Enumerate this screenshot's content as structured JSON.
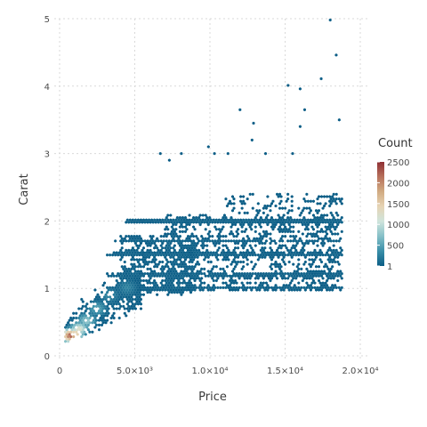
{
  "chart_data": {
    "type": "heatmap",
    "subtype": "hexbin",
    "title": "",
    "xlabel": "Price",
    "ylabel": "Carat",
    "xlim": [
      0,
      20000
    ],
    "ylim": [
      0,
      5
    ],
    "grid": true,
    "x_ticks": [
      {
        "value": 0,
        "label": "0"
      },
      {
        "value": 5000,
        "label": "5.0×10³"
      },
      {
        "value": 10000,
        "label": "1.0×10⁴"
      },
      {
        "value": 15000,
        "label": "1.5×10⁴"
      },
      {
        "value": 20000,
        "label": "2.0×10⁴"
      }
    ],
    "y_ticks": [
      {
        "value": 0,
        "label": "0"
      },
      {
        "value": 1,
        "label": "1"
      },
      {
        "value": 2,
        "label": "2"
      },
      {
        "value": 3,
        "label": "3"
      },
      {
        "value": 4,
        "label": "4"
      },
      {
        "value": 5,
        "label": "5"
      }
    ],
    "legend": {
      "title": "Count",
      "placement": "right",
      "range": [
        1,
        2500
      ],
      "ticks": [
        {
          "value": 2500,
          "label": "2500"
        },
        {
          "value": 2000,
          "label": "2000"
        },
        {
          "value": 1500,
          "label": "1500"
        },
        {
          "value": 1000,
          "label": "1000"
        },
        {
          "value": 500,
          "label": "500"
        },
        {
          "value": 1,
          "label": "1"
        }
      ],
      "colors": [
        "#0b5d86",
        "#3a8fa8",
        "#86c0c8",
        "#cfe4dc",
        "#e6d4b4",
        "#d1ab82",
        "#b7715c",
        "#8f2f34"
      ]
    },
    "hot_spots": [
      {
        "price": 700,
        "carat": 0.3,
        "count": 2500
      },
      {
        "price": 1000,
        "carat": 0.32,
        "count": 1900
      },
      {
        "price": 1300,
        "carat": 0.4,
        "count": 1400
      },
      {
        "price": 1800,
        "carat": 0.52,
        "count": 900
      },
      {
        "price": 2500,
        "carat": 0.7,
        "count": 600
      },
      {
        "price": 3300,
        "carat": 0.9,
        "count": 350
      },
      {
        "price": 4500,
        "carat": 1.01,
        "count": 300
      }
    ],
    "outliers": [
      {
        "price": 18000,
        "carat": 4.98
      },
      {
        "price": 18400,
        "carat": 4.46
      },
      {
        "price": 15200,
        "carat": 4.01
      },
      {
        "price": 16000,
        "carat": 3.96
      },
      {
        "price": 17400,
        "carat": 4.11
      },
      {
        "price": 16300,
        "carat": 3.65
      },
      {
        "price": 12000,
        "carat": 3.65
      },
      {
        "price": 12900,
        "carat": 3.45
      },
      {
        "price": 16000,
        "carat": 3.4
      },
      {
        "price": 18600,
        "carat": 3.5
      },
      {
        "price": 12800,
        "carat": 3.2
      },
      {
        "price": 9900,
        "carat": 3.1
      },
      {
        "price": 6700,
        "carat": 3.0
      },
      {
        "price": 8100,
        "carat": 3.0
      },
      {
        "price": 10300,
        "carat": 3.0
      },
      {
        "price": 11200,
        "carat": 3.0
      },
      {
        "price": 13700,
        "carat": 3.0
      },
      {
        "price": 15500,
        "carat": 3.0
      },
      {
        "price": 7300,
        "carat": 2.9
      }
    ]
  }
}
